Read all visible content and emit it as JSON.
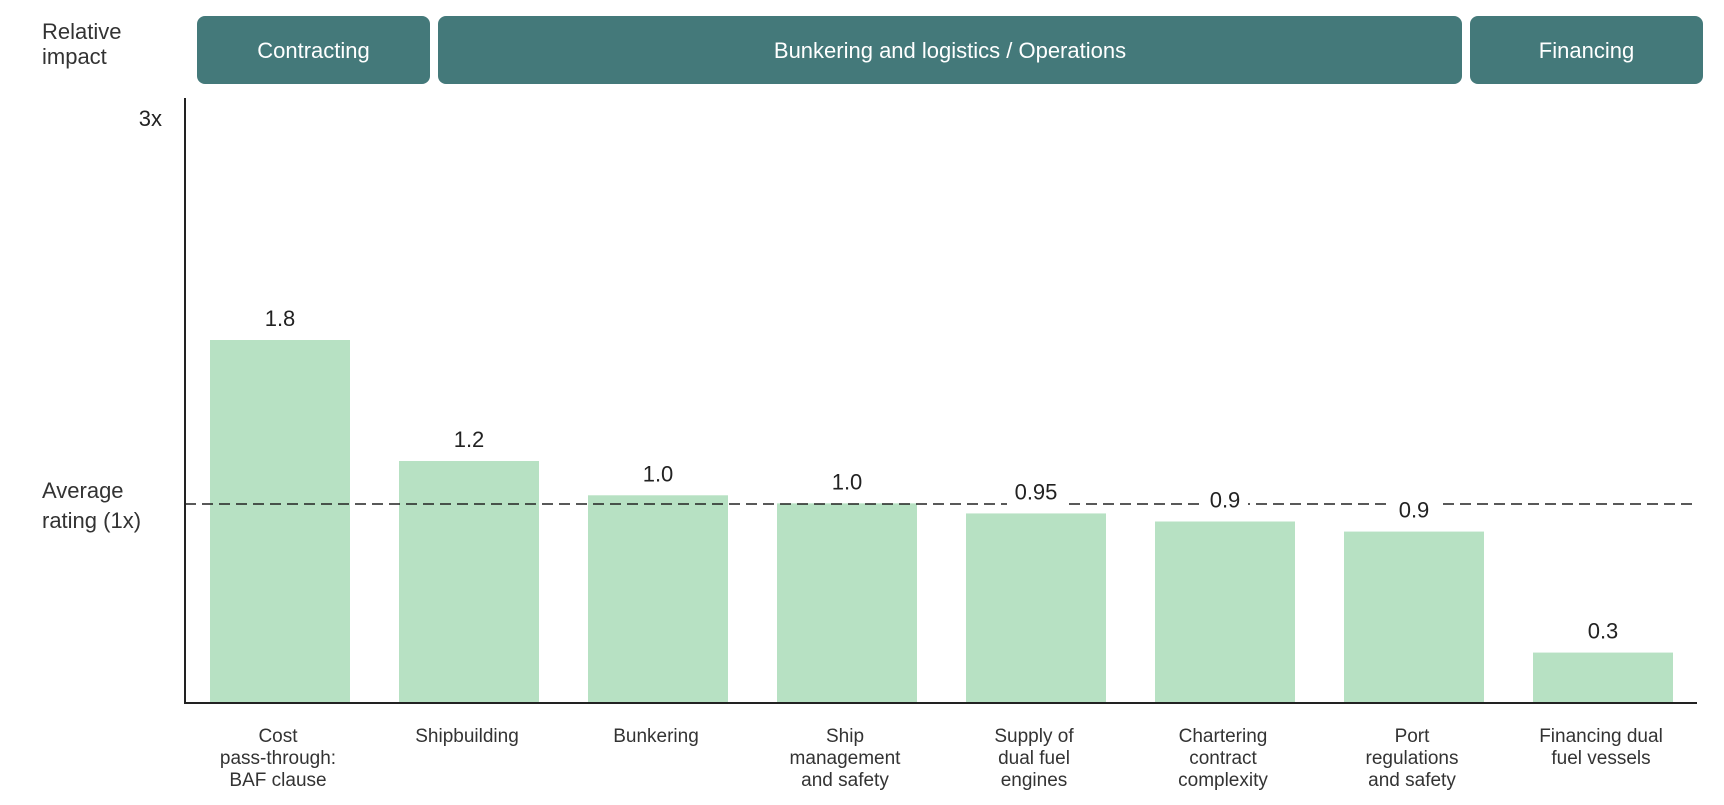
{
  "side_labels": {
    "relative_impact": [
      "Relative",
      "impact"
    ],
    "average_rating": [
      "Average",
      "rating (1x)"
    ]
  },
  "chart_data": {
    "type": "bar",
    "groups": [
      {
        "label": "Contracting",
        "category_count": 1
      },
      {
        "label": "Bunkering and logistics / Operations",
        "category_count": 6
      },
      {
        "label": "Financing",
        "category_count": 1
      }
    ],
    "categories": [
      [
        "Cost",
        "pass-through:",
        "BAF clause"
      ],
      [
        "Shipbuilding"
      ],
      [
        "Bunkering"
      ],
      [
        "Ship",
        "management",
        "and safety"
      ],
      [
        "Supply of",
        "dual fuel",
        "engines"
      ],
      [
        "Chartering",
        "contract",
        "complexity"
      ],
      [
        "Port",
        "regulations",
        "and safety"
      ],
      [
        "Financing dual",
        "fuel vessels"
      ]
    ],
    "values": [
      1.8,
      1.2,
      1.0,
      1.0,
      0.95,
      0.9,
      0.9,
      0.3
    ],
    "value_labels": [
      "1.8",
      "1.2",
      "1.0",
      "1.0",
      "0.95",
      "0.9",
      "0.9",
      "0.3"
    ],
    "bar_heights": [
      1.8,
      1.2,
      1.03,
      0.99,
      0.94,
      0.9,
      0.85,
      0.25
    ],
    "reference_line": {
      "value": 1.0,
      "style": "dashed"
    },
    "ylim": [
      0,
      3
    ],
    "yticks": [
      {
        "value": 3,
        "label": "3x"
      }
    ],
    "grid": false,
    "colors": {
      "bar": "#b7e1c3",
      "group_header": "#44797a",
      "axis": "#222222"
    }
  }
}
